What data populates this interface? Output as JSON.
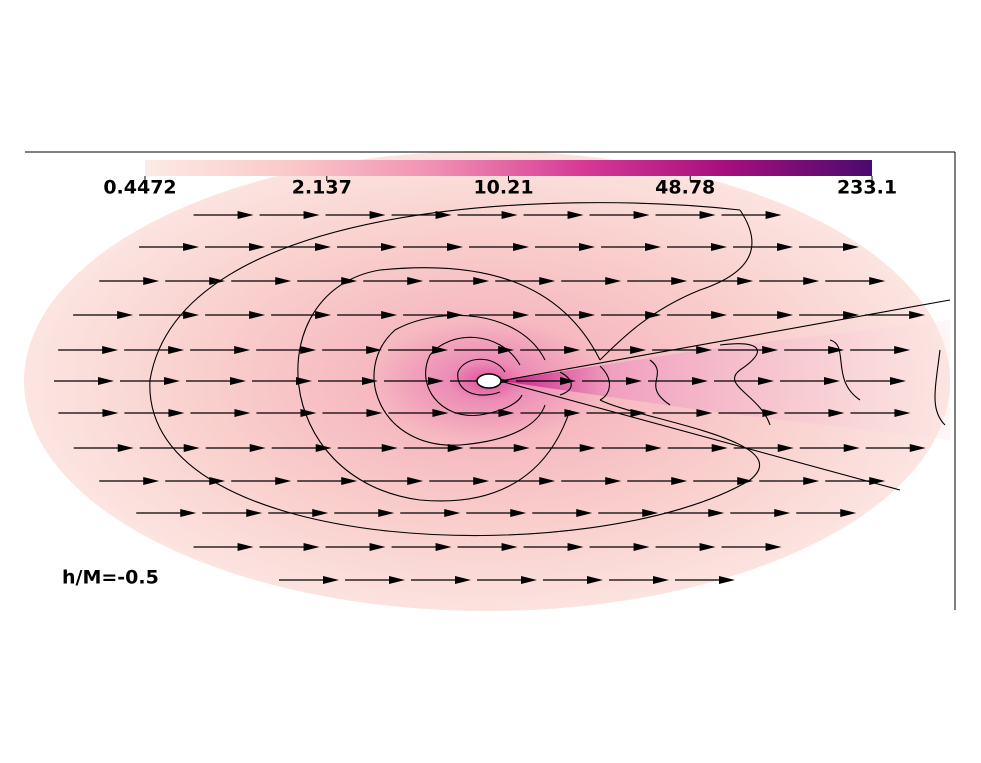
{
  "chart_data": {
    "type": "colormap",
    "annotation": "h/M=-0.5",
    "colorbar": {
      "scale": "log",
      "clim": [
        0.4472,
        233.1
      ],
      "ticks": [
        0.4472,
        2.137,
        10.21,
        48.78,
        233.1
      ],
      "colors": [
        "#fdeae6",
        "#f9c9c8",
        "#f08fb3",
        "#d63a95",
        "#a50f7d",
        "#4b0a6e"
      ]
    }
  }
}
